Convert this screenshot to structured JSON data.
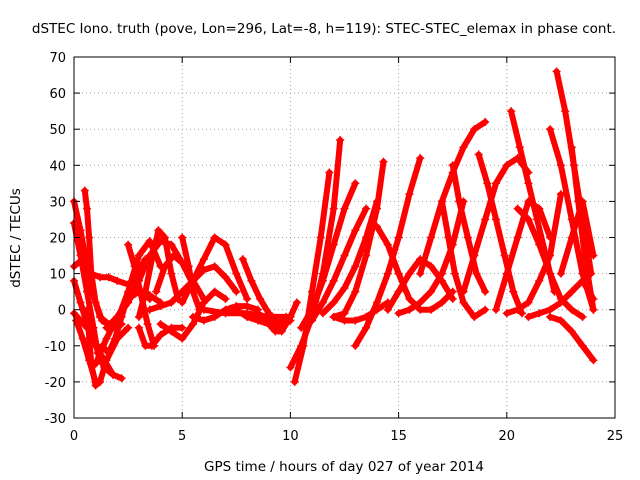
{
  "chart_data": {
    "type": "scatter",
    "title": "dSTEC Iono. truth (pove, Lon=296, Lat=-8, h=119): STEC-STEC_elemax in phase cont.",
    "xlabel": "GPS time / hours of day 027 of year 2014",
    "ylabel": "dSTEC  / TECUs",
    "xlim": [
      0,
      25
    ],
    "ylim": [
      -30,
      70
    ],
    "xticks": [
      0,
      5,
      10,
      15,
      20,
      25
    ],
    "yticks": [
      -30,
      -20,
      -10,
      0,
      10,
      20,
      30,
      40,
      50,
      60,
      70
    ],
    "xtick_labels": [
      "0",
      "5",
      "10",
      "15",
      "20",
      "25"
    ],
    "ytick_labels": [
      "-30",
      "-20",
      "-10",
      "0",
      "10",
      "20",
      "30",
      "40",
      "50",
      "60",
      "70"
    ],
    "grid": true,
    "legend": "none",
    "marker": "plus",
    "color": "#ff0000",
    "series": [
      {
        "x": [
          0.0,
          0.3,
          0.6,
          0.9,
          1.2,
          1.6,
          2.0
        ],
        "y": [
          30,
          22,
          12,
          4,
          -2,
          -4,
          -3
        ]
      },
      {
        "x": [
          0.0,
          0.3,
          0.6,
          0.9,
          1.1,
          1.4,
          1.8,
          2.2
        ],
        "y": [
          24,
          15,
          5,
          -5,
          -12,
          -16,
          -18,
          -19
        ]
      },
      {
        "x": [
          0.0,
          0.4,
          0.8,
          1.2,
          1.6,
          2.0,
          2.5,
          3.0,
          3.5
        ],
        "y": [
          12,
          14,
          10,
          9,
          9,
          8,
          7,
          5,
          3
        ]
      },
      {
        "x": [
          0.0,
          0.3,
          0.6,
          1.0,
          1.4,
          1.8
        ],
        "y": [
          8,
          2,
          -4,
          -10,
          -14,
          -18
        ]
      },
      {
        "x": [
          0.0,
          0.3,
          0.6,
          0.9
        ],
        "y": [
          -1,
          -3,
          -5,
          -7
        ]
      },
      {
        "x": [
          0.5,
          0.6,
          0.7,
          0.8,
          1.0,
          1.3,
          1.8,
          2.2
        ],
        "y": [
          33,
          28,
          20,
          10,
          2,
          -3,
          -5,
          -4
        ]
      },
      {
        "x": [
          0.6,
          0.8,
          1.0,
          1.2,
          1.5,
          2.0,
          2.5
        ],
        "y": [
          0,
          -15,
          -21,
          -20,
          -14,
          -8,
          -5
        ]
      },
      {
        "x": [
          0.1,
          0.4,
          0.7,
          1.0
        ],
        "y": [
          -3,
          -8,
          -14,
          -20
        ]
      },
      {
        "x": [
          1.0,
          1.5,
          2.0,
          2.5,
          3.0,
          3.5,
          4.0
        ],
        "y": [
          -15,
          -8,
          -2,
          3,
          5,
          4,
          2
        ]
      },
      {
        "x": [
          1.3,
          1.6,
          1.9,
          2.2,
          2.5,
          2.9,
          3.3
        ],
        "y": [
          -10,
          -12,
          -8,
          -2,
          4,
          10,
          14
        ]
      },
      {
        "x": [
          1.5,
          2.0,
          2.5,
          3.0,
          3.5,
          4.0,
          4.5,
          5.0,
          5.5
        ],
        "y": [
          -5,
          -2,
          2,
          8,
          15,
          19,
          18,
          13,
          7
        ]
      },
      {
        "x": [
          2.0,
          2.5,
          3.0,
          3.5,
          4.0
        ],
        "y": [
          -3,
          5,
          15,
          19,
          12
        ]
      },
      {
        "x": [
          2.5,
          2.8,
          3.1,
          3.4,
          3.7
        ],
        "y": [
          18,
          12,
          4,
          -4,
          -10
        ]
      },
      {
        "x": [
          3.0,
          3.3,
          3.6,
          4.0,
          4.5,
          5.0
        ],
        "y": [
          -5,
          -10,
          -10,
          -7,
          -5,
          -5
        ]
      },
      {
        "x": [
          3.0,
          3.3,
          3.6,
          3.9,
          4.2,
          4.5,
          4.8
        ],
        "y": [
          -2,
          5,
          14,
          22,
          20,
          10,
          3
        ]
      },
      {
        "x": [
          3.8,
          4.2,
          4.6,
          5.0,
          5.5,
          6.0
        ],
        "y": [
          5,
          12,
          15,
          13,
          8,
          3
        ]
      },
      {
        "x": [
          3.5,
          4.0,
          4.5,
          5.0,
          5.5,
          6.0,
          6.5,
          7.0,
          7.5
        ],
        "y": [
          0,
          1,
          2,
          5,
          8,
          11,
          12,
          9,
          5
        ]
      },
      {
        "x": [
          4.0,
          4.5,
          5.0,
          5.5,
          6.0,
          6.5,
          7.0
        ],
        "y": [
          -4,
          -6,
          -8,
          -4,
          2,
          5,
          3
        ]
      },
      {
        "x": [
          5.0,
          5.3,
          5.5,
          5.8
        ],
        "y": [
          20,
          12,
          5,
          0
        ]
      },
      {
        "x": [
          5.0,
          5.5,
          6.0,
          6.5,
          7.0,
          7.5,
          8.0
        ],
        "y": [
          2,
          8,
          14,
          20,
          18,
          10,
          3
        ]
      },
      {
        "x": [
          5.5,
          6.0,
          6.5,
          7.0,
          7.5,
          8.0,
          8.5
        ],
        "y": [
          -2,
          -3,
          -2,
          0,
          1,
          1,
          0
        ]
      },
      {
        "x": [
          7.8,
          8.2,
          8.6,
          9.0,
          9.4,
          9.8
        ],
        "y": [
          14,
          8,
          3,
          -1,
          -3,
          -2
        ]
      },
      {
        "x": [
          7.5,
          8.0,
          8.5,
          9.0,
          9.5,
          10.0
        ],
        "y": [
          0,
          -2,
          -3,
          -4,
          -5,
          -3
        ]
      },
      {
        "x": [
          6.0,
          7.0,
          8.0,
          9.0,
          10.0
        ],
        "y": [
          0,
          -1,
          -1,
          -2,
          -2
        ]
      },
      {
        "x": [
          9.0,
          9.3,
          9.6,
          9.9
        ],
        "y": [
          -4,
          -6,
          -6,
          -3
        ]
      },
      {
        "x": [
          8.5,
          9.0,
          9.5,
          10.0,
          10.3
        ],
        "y": [
          -1,
          -3,
          -4,
          -2,
          2
        ]
      },
      {
        "x": [
          10.0,
          10.5,
          11.0,
          11.5,
          12.0,
          12.3
        ],
        "y": [
          -16,
          -10,
          -2,
          10,
          28,
          47
        ]
      },
      {
        "x": [
          10.2,
          10.6,
          11.0,
          11.4,
          11.8
        ],
        "y": [
          -20,
          -10,
          5,
          20,
          38
        ]
      },
      {
        "x": [
          10.5,
          11.0,
          11.5,
          12.0,
          12.5,
          13.0
        ],
        "y": [
          -5,
          0,
          8,
          18,
          28,
          35
        ]
      },
      {
        "x": [
          11.0,
          11.5,
          12.0,
          12.5,
          13.0,
          13.5
        ],
        "y": [
          -3,
          2,
          8,
          15,
          22,
          28
        ]
      },
      {
        "x": [
          11.5,
          12.0,
          12.5,
          13.0,
          13.5,
          14.0
        ],
        "y": [
          -1,
          2,
          6,
          12,
          20,
          30
        ]
      },
      {
        "x": [
          12.0,
          12.5,
          13.0,
          13.5,
          14.0,
          14.3
        ],
        "y": [
          -2,
          -1,
          5,
          15,
          28,
          41
        ]
      },
      {
        "x": [
          13.0,
          13.5,
          14.0,
          14.5,
          15.0,
          15.5,
          16.0
        ],
        "y": [
          -10,
          -5,
          2,
          10,
          20,
          32,
          42
        ]
      },
      {
        "x": [
          12.0,
          12.5,
          13.0,
          13.5,
          14.0,
          14.5
        ],
        "y": [
          -2,
          -3,
          -3,
          -2,
          0,
          2
        ]
      },
      {
        "x": [
          14.0,
          14.5,
          15.0,
          15.5,
          16.0,
          16.5,
          17.0,
          17.5
        ],
        "y": [
          23,
          18,
          10,
          3,
          0,
          0,
          2,
          5
        ]
      },
      {
        "x": [
          14.5,
          15.0,
          15.5,
          16.0,
          16.5,
          17.0,
          17.5
        ],
        "y": [
          0,
          5,
          10,
          14,
          12,
          8,
          3
        ]
      },
      {
        "x": [
          15.0,
          15.5,
          16.0,
          16.5,
          17.0,
          17.5,
          18.0
        ],
        "y": [
          -1,
          0,
          2,
          5,
          10,
          18,
          30
        ]
      },
      {
        "x": [
          16.0,
          16.5,
          17.0,
          17.5,
          18.0,
          18.5,
          19.0
        ],
        "y": [
          10,
          20,
          30,
          38,
          45,
          50,
          52
        ]
      },
      {
        "x": [
          17.0,
          17.3,
          17.6,
          18.0,
          18.5,
          19.0
        ],
        "y": [
          30,
          20,
          10,
          2,
          -2,
          0
        ]
      },
      {
        "x": [
          17.5,
          17.8,
          18.2,
          18.6,
          19.0
        ],
        "y": [
          40,
          30,
          20,
          10,
          5
        ]
      },
      {
        "x": [
          18.0,
          18.5,
          19.0,
          19.5,
          20.0,
          20.5,
          21.0
        ],
        "y": [
          5,
          15,
          25,
          35,
          40,
          42,
          38
        ]
      },
      {
        "x": [
          18.7,
          19.1,
          19.5,
          19.9,
          20.3,
          20.7
        ],
        "y": [
          43,
          35,
          25,
          15,
          5,
          -1
        ]
      },
      {
        "x": [
          19.5,
          20.0,
          20.5,
          21.0,
          21.5,
          22.0
        ],
        "y": [
          0,
          10,
          20,
          30,
          28,
          20
        ]
      },
      {
        "x": [
          20.2,
          20.6,
          21.0,
          21.4,
          21.8,
          22.2
        ],
        "y": [
          55,
          45,
          35,
          25,
          15,
          5
        ]
      },
      {
        "x": [
          20.0,
          20.5,
          21.0,
          21.5,
          22.0,
          22.5
        ],
        "y": [
          -1,
          0,
          2,
          8,
          15,
          32
        ]
      },
      {
        "x": [
          20.5,
          21.0,
          21.5,
          22.0,
          22.5,
          23.0,
          23.5
        ],
        "y": [
          28,
          25,
          18,
          10,
          3,
          0,
          -2
        ]
      },
      {
        "x": [
          22.0,
          22.5,
          23.0,
          23.5,
          24.0
        ],
        "y": [
          50,
          40,
          25,
          10,
          0
        ]
      },
      {
        "x": [
          22.3,
          22.7,
          23.1,
          23.5,
          23.9
        ],
        "y": [
          66,
          55,
          40,
          25,
          10
        ]
      },
      {
        "x": [
          22.5,
          23.0,
          23.5,
          24.0
        ],
        "y": [
          10,
          20,
          30,
          15
        ]
      },
      {
        "x": [
          21.0,
          21.5,
          22.0,
          22.5,
          23.0,
          23.5,
          24.0
        ],
        "y": [
          -2,
          -1,
          0,
          2,
          5,
          8,
          3
        ]
      },
      {
        "x": [
          22.0,
          22.5,
          23.0,
          23.5,
          24.0
        ],
        "y": [
          -2,
          -3,
          -6,
          -10,
          -14
        ]
      },
      {
        "x": [
          23.0,
          23.3,
          23.6,
          24.0
        ],
        "y": [
          45,
          30,
          15,
          0
        ]
      }
    ]
  }
}
